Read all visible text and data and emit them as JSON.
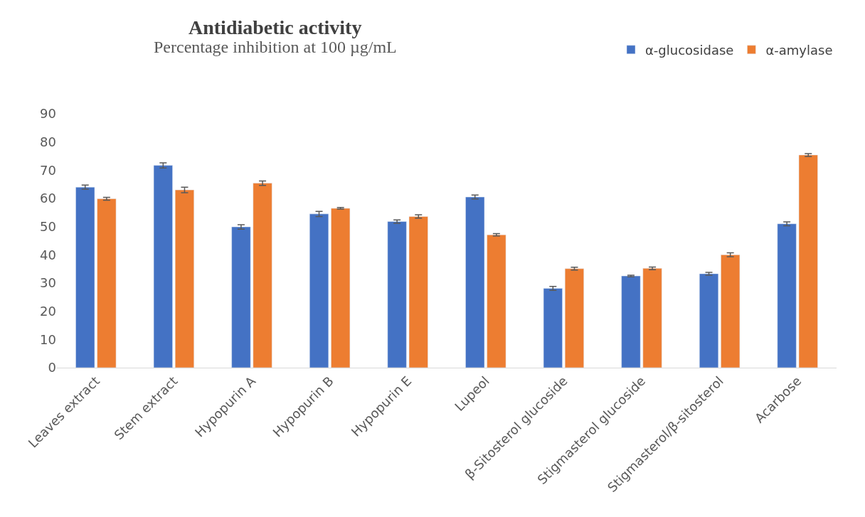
{
  "chart_data": {
    "type": "bar",
    "title": "Antidiabetic activity",
    "subtitle": "Percentage inhibition at 100 µg/mL",
    "categories": [
      "Leaves extract",
      "Stem extract",
      "Hypopurin A",
      "Hypopurin B",
      "Hypopurin E",
      "Lupeol",
      "β-Sitosterol glucoside",
      "Stigmasterol glucoside",
      "Stigmasterol/β-sitosterol",
      "Acarbose"
    ],
    "series": [
      {
        "name": "α-glucosidase",
        "color": "#4472c4",
        "values": [
          64.0,
          71.7,
          49.9,
          54.5,
          51.8,
          60.5,
          28.1,
          32.5,
          33.3,
          51.0
        ],
        "errors": [
          0.7,
          0.9,
          0.8,
          0.9,
          0.6,
          0.7,
          0.7,
          0.3,
          0.5,
          0.7
        ]
      },
      {
        "name": "α-amylase",
        "color": "#ed7d31",
        "values": [
          59.9,
          63.0,
          65.4,
          56.5,
          53.6,
          47.1,
          35.1,
          35.2,
          40.0,
          75.4
        ],
        "errors": [
          0.5,
          1.0,
          0.8,
          0.3,
          0.6,
          0.4,
          0.5,
          0.5,
          0.7,
          0.5
        ]
      }
    ],
    "ylim": [
      0,
      90
    ],
    "yticks": [
      0,
      10,
      20,
      30,
      40,
      50,
      60,
      70,
      80,
      90
    ],
    "legend": "top right"
  }
}
